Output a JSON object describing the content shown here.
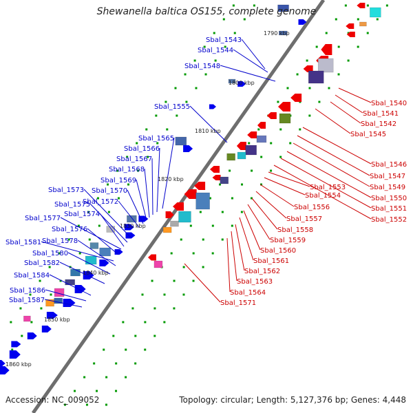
{
  "title": "Shewanella baltica OS155, complete genome",
  "accession": "Accession: NC_009052",
  "topology": "Topology: circular; Length: 5,127,376 bp; Genes: 4,448",
  "colors": {
    "backbone": "#777777",
    "minus_strand": "#0000ee",
    "plus_strand": "#ee0000",
    "tick_dots": "#009900",
    "label_blue": "#0000cc",
    "label_red": "#cc0000"
  },
  "scale_labels": [
    "1790 kbp",
    "1800 kbp",
    "1810 kbp",
    "1820 kbp",
    "1830 kbp",
    "1840 kbp",
    "1850 kbp",
    "1860 kbp"
  ],
  "minus_strand_labels": [
    "Sbal_1543",
    "Sbal_1544",
    "Sbal_1548",
    "Sbal_1555",
    "Sbal_1565",
    "Sbal_1566",
    "Sbal_1567",
    "Sbal_1568",
    "Sbal_1569",
    "Sbal_1570",
    "Sbal_1573",
    "Sbal_1572",
    "Sbal_1575",
    "Sbal_1574",
    "Sbal_1577",
    "Sbal_1576",
    "Sbal_1581",
    "Sbal_1578",
    "Sbal_1580",
    "Sbal_1582",
    "Sbal_1584",
    "Sbal_1586",
    "Sbal_1587"
  ],
  "plus_strand_labels": [
    "Sbal_1540",
    "Sbal_1541",
    "Sbal_1542",
    "Sbal_1545",
    "Sbal_1546",
    "Sbal_1547",
    "Sbal_1549",
    "Sbal_1550",
    "Sbal_1551",
    "Sbal_1552",
    "Sbal_1553",
    "Sbal_1554",
    "Sbal_1556",
    "Sbal_1557",
    "Sbal_1558",
    "Sbal_1559",
    "Sbal_1560",
    "Sbal_1561",
    "Sbal_1562",
    "Sbal_1563",
    "Sbal_1564",
    "Sbal_1571"
  ]
}
